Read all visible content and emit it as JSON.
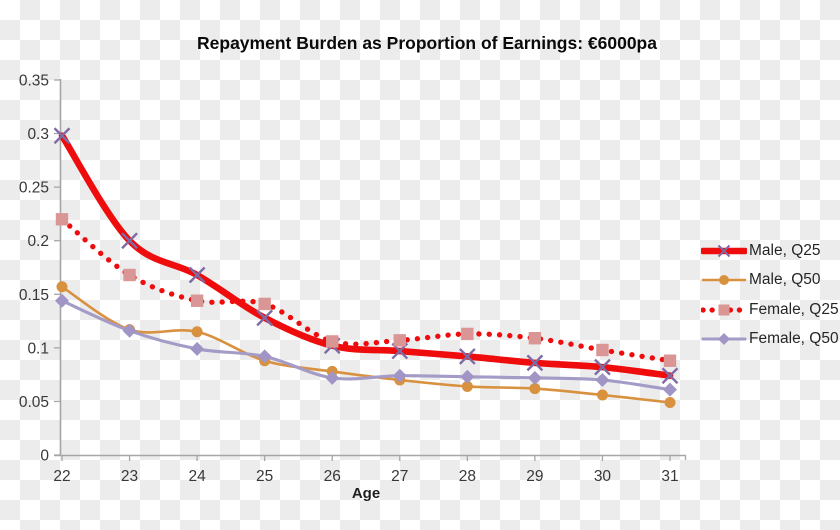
{
  "title": "Repayment Burden as Proportion of Earnings: €6000pa",
  "chart_data": {
    "type": "line",
    "title": "Repayment Burden as Proportion of Earnings: €6000pa",
    "xlabel": "Age",
    "ylabel": "",
    "x": [
      22,
      23,
      24,
      25,
      26,
      27,
      28,
      29,
      30,
      31
    ],
    "ylim": [
      0,
      0.35
    ],
    "yticks": [
      "0.35",
      "0.3",
      "0.25",
      "0.2",
      "0.15",
      "0.1",
      "0.05",
      "0"
    ],
    "grid": false,
    "legend_position": "right",
    "line_shape": "smooth",
    "series": [
      {
        "name": "Male, Q25",
        "style": "solid-thick",
        "color": "#ee0c0c",
        "marker": "x",
        "marker_color": "#7e6ba6",
        "values": [
          0.298,
          0.2,
          0.168,
          0.128,
          0.102,
          0.097,
          0.092,
          0.086,
          0.082,
          0.074
        ]
      },
      {
        "name": "Male, Q50",
        "style": "solid-thin",
        "color": "#d8913e",
        "marker": "circle",
        "marker_color": "#d8913e",
        "values": [
          0.157,
          0.117,
          0.115,
          0.088,
          0.078,
          0.07,
          0.064,
          0.062,
          0.056,
          0.049
        ]
      },
      {
        "name": "Female, Q25",
        "style": "dotted",
        "color": "#ee0c0c",
        "marker": "square",
        "marker_color": "#d99694",
        "values": [
          0.22,
          0.168,
          0.144,
          0.141,
          0.106,
          0.107,
          0.113,
          0.109,
          0.098,
          0.088
        ]
      },
      {
        "name": "Female, Q50",
        "style": "solid-medium",
        "color": "#a49bc7",
        "marker": "diamond",
        "marker_color": "#a195c5",
        "values": [
          0.144,
          0.116,
          0.099,
          0.092,
          0.072,
          0.074,
          0.073,
          0.072,
          0.07,
          0.061
        ]
      }
    ],
    "axis_color": "#a6a6a6"
  }
}
